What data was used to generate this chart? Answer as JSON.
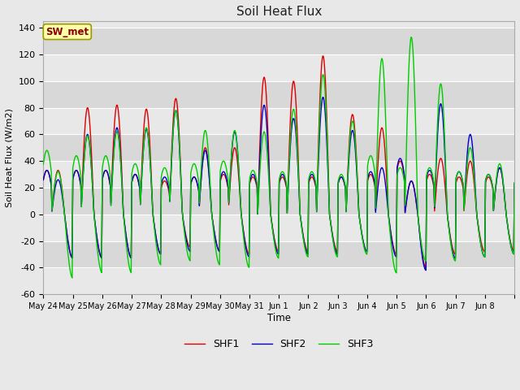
{
  "title": "Soil Heat Flux",
  "ylabel": "Soil Heat Flux (W/m2)",
  "xlabel": "Time",
  "ylim": [
    -60,
    145
  ],
  "yticks": [
    -60,
    -40,
    -20,
    0,
    20,
    40,
    60,
    80,
    100,
    120,
    140
  ],
  "background_color": "#e8e8e8",
  "plot_bg_color": "#ffffff",
  "grid_color": "#cccccc",
  "line_colors": {
    "SHF1": "#dd0000",
    "SHF2": "#0000cc",
    "SHF3": "#00cc00"
  },
  "line_width": 1.0,
  "legend_label": "SW_met",
  "legend_box_color": "#ffffaa",
  "legend_box_edge": "#999900",
  "x_tick_labels": [
    "May 24",
    "May 25",
    "May 26",
    "May 27",
    "May 28",
    "May 29",
    "May 30",
    "May 31",
    "Jun 1",
    "Jun 2",
    "Jun 3",
    "Jun 4",
    "Jun 5",
    "Jun 6",
    "Jun 7",
    "Jun 8"
  ],
  "n_days": 16,
  "points_per_day": 48,
  "band_colors": [
    "#e8e8e8",
    "#d8d8d8"
  ]
}
